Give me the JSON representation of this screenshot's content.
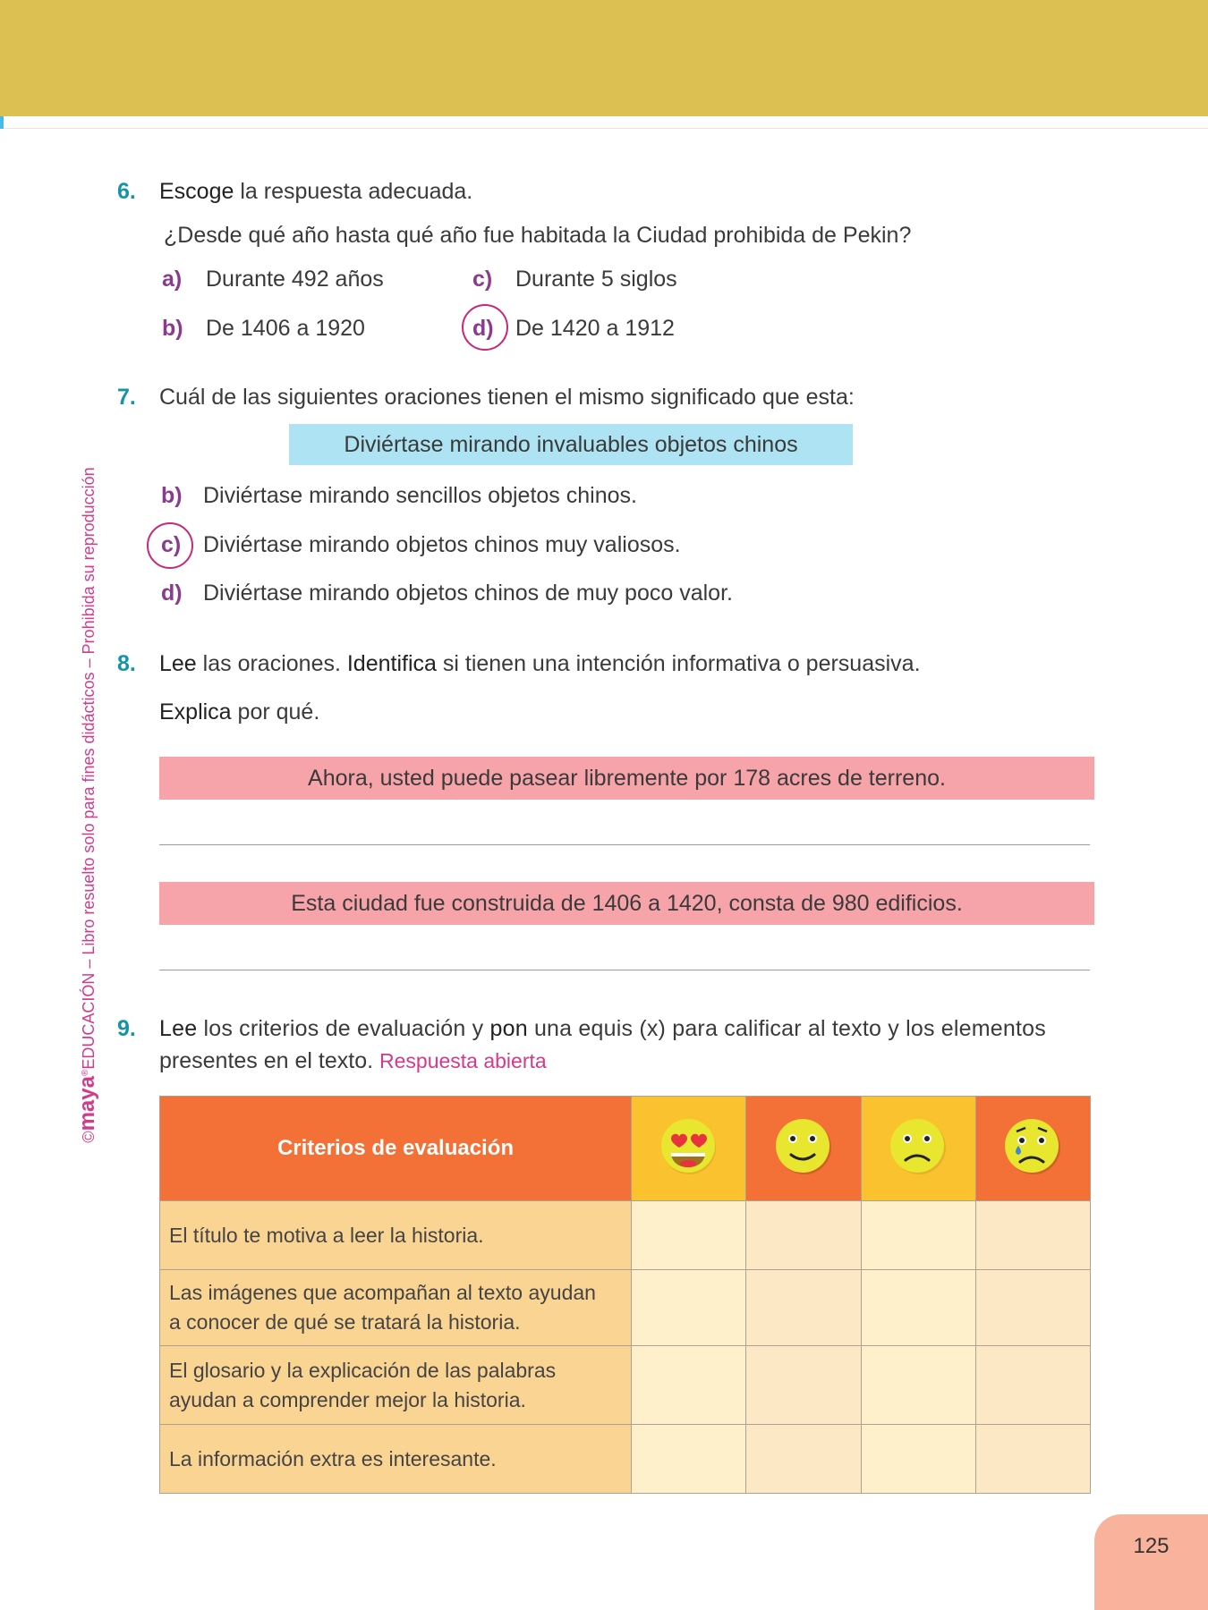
{
  "sidebar": {
    "brand": "maya",
    "copyright": "©",
    "text": "EDUCACIÓN – Libro resuelto solo para fines didácticos – Prohibida su reproducción"
  },
  "q6": {
    "number": "6.",
    "verb": "Escoge",
    "rest": " la respuesta adecuada.",
    "question": "¿Desde qué año hasta qué año fue habitada la Ciudad prohibida de Pekin?",
    "options": [
      {
        "label": "a)",
        "text": "Durante 492 años"
      },
      {
        "label": "b)",
        "text": "De 1406 a 1920"
      },
      {
        "label": "c)",
        "text": "Durante 5 siglos"
      },
      {
        "label": "d)",
        "text": "De 1420 a 1912",
        "selected": true
      }
    ]
  },
  "q7": {
    "number": "7.",
    "text": "Cuál de las siguientes oraciones tienen el mismo significado que esta:",
    "sentence": "Diviértase mirando invaluables objetos chinos",
    "options": [
      {
        "label": "b)",
        "text": "Diviértase mirando sencillos objetos chinos."
      },
      {
        "label": "c)",
        "text": "Diviértase mirando objetos chinos muy valiosos.",
        "selected": true
      },
      {
        "label": "d)",
        "text": "Diviértase mirando objetos chinos de muy poco valor."
      }
    ]
  },
  "q8": {
    "number": "8.",
    "verb1": "Lee",
    "part1": " las oraciones. ",
    "verb2": "Identifica",
    "part2": " si tienen una intención informativa o persuasiva.",
    "verb3": "Explica",
    "part3": " por qué.",
    "sentences": [
      "Ahora, usted puede pasear libremente por 178 acres de terreno.",
      "Esta ciudad fue construida de 1406 a 1420, consta de 980 edificios."
    ]
  },
  "q9": {
    "number": "9.",
    "verb1": "Lee",
    "part1": " los criterios de evaluación y ",
    "verb2": "pon",
    "part2": " una equis (x) para calificar al texto y los elementos",
    "line2": "presentes en el texto.",
    "answer": "Respuesta abierta",
    "table": {
      "header": "Criterios de evaluación",
      "icons": [
        "heart-eyes-emoji-icon",
        "smile-emoji-icon",
        "frown-emoji-icon",
        "crying-emoji-icon"
      ],
      "rows": [
        [
          "El título te motiva a leer la historia."
        ],
        [
          "Las imágenes que acompañan al texto ayudan",
          "a conocer de qué se tratará la historia."
        ],
        [
          "El glosario y la explicación de las palabras",
          "ayudan a comprender mejor la historia."
        ],
        [
          "La información extra es interesante."
        ]
      ]
    }
  },
  "page_number": "125",
  "colors": {
    "header_band": "#dcc052",
    "teal": "#1594a6",
    "purple": "#8b3a8e",
    "magenta": "#d23a8c",
    "orange": "#f37037",
    "yellow": "#fbc22f"
  }
}
